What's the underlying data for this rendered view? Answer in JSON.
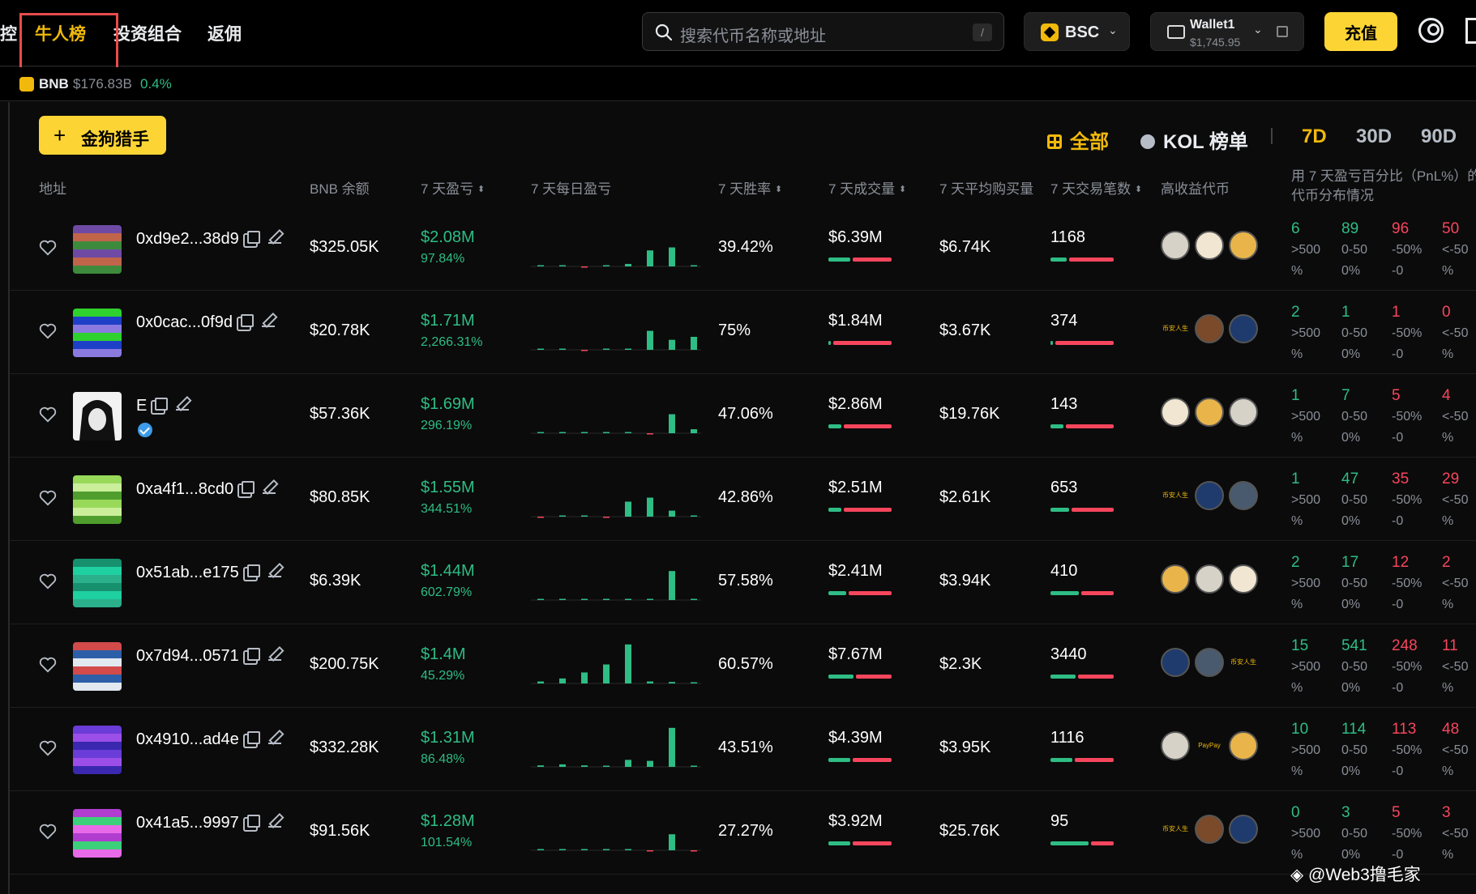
{
  "nav": {
    "items": [
      {
        "label": "控",
        "active": false
      },
      {
        "label": "牛人榜",
        "active": true
      },
      {
        "label": "投资组合",
        "active": false
      },
      {
        "label": "返佣",
        "active": false
      }
    ]
  },
  "search": {
    "placeholder": "搜索代币名称或地址",
    "shortcut": "/"
  },
  "chain": {
    "label": "BSC",
    "icon": "bnb-icon"
  },
  "wallet": {
    "name": "Wallet1",
    "balance": "$1,745.95"
  },
  "deposit_label": "充值",
  "ticker": {
    "symbol": "BNB",
    "cap": "$176.83B",
    "change": "0.4%"
  },
  "toolbar": {
    "add_label": "金狗猎手",
    "filters": [
      {
        "label": "全部",
        "active": true
      },
      {
        "label": "KOL 榜单",
        "active": false
      }
    ],
    "periods": [
      {
        "label": "7D",
        "active": true
      },
      {
        "label": "30D",
        "active": false
      },
      {
        "label": "90D",
        "active": false
      }
    ]
  },
  "columns": {
    "address": "地址",
    "balance": "BNB 余额",
    "pnl": "7 天盈亏",
    "daily": "7 天每日盈亏",
    "winrate": "7 天胜率",
    "volume": "7 天成交量",
    "avg_buy": "7 天平均购买量",
    "tx_count": "7 天交易笔数",
    "top_tokens": "高收益代币",
    "distribution": "用 7 天盈亏百分比（PnL%）的代币分布情况"
  },
  "distribution_labels": [
    ">500%",
    "0-500%",
    "-50%-0",
    "<-50%"
  ],
  "rows": [
    {
      "address": "0xd9e2...38d9",
      "balance": "$325.05K",
      "pnl": "$2.08M",
      "pnl_pct": "97.84%",
      "daily": [
        0.5,
        0.5,
        -0.3,
        0.5,
        2.5,
        16,
        19,
        0.3
      ],
      "winrate": "39.42%",
      "volume": "$6.39M",
      "vol_buy_share": 0.35,
      "avg_buy": "$6.74K",
      "tx_count": "1168",
      "tx_buy_share": 0.25,
      "tokens": [
        "token-icon",
        "token-icon",
        "token-icon"
      ],
      "dist": [
        "6",
        "89",
        "96",
        "50"
      ]
    },
    {
      "address": "0x0cac...0f9d",
      "balance": "$20.78K",
      "pnl": "$1.71M",
      "pnl_pct": "2,266.31%",
      "daily": [
        0,
        0.5,
        -0.4,
        0,
        0,
        19,
        10,
        13
      ],
      "winrate": "75%",
      "volume": "$1.84M",
      "vol_buy_share": 0.04,
      "avg_buy": "$3.67K",
      "tx_count": "374",
      "tx_buy_share": 0.04,
      "tokens": [
        "币安人生",
        "token-icon",
        "token-icon"
      ],
      "dist": [
        "2",
        "1",
        "1",
        "0"
      ]
    },
    {
      "address": "E",
      "verified": true,
      "balance": "$57.36K",
      "pnl": "$1.69M",
      "pnl_pct": "296.19%",
      "daily": [
        0,
        0.3,
        0.3,
        0.3,
        0.5,
        -0.4,
        19,
        4
      ],
      "winrate": "47.06%",
      "volume": "$2.86M",
      "vol_buy_share": 0.2,
      "avg_buy": "$19.76K",
      "tx_count": "143",
      "tx_buy_share": 0.2,
      "tokens": [
        "token-icon",
        "token-icon",
        "token-icon"
      ],
      "dist": [
        "1",
        "7",
        "5",
        "4"
      ]
    },
    {
      "address": "0xa4f1...8cd0",
      "balance": "$80.85K",
      "pnl": "$1.55M",
      "pnl_pct": "344.51%",
      "daily": [
        -0.3,
        0.3,
        0,
        -0.3,
        15,
        19,
        6,
        1
      ],
      "winrate": "42.86%",
      "volume": "$2.51M",
      "vol_buy_share": 0.2,
      "avg_buy": "$2.61K",
      "tx_count": "653",
      "tx_buy_share": 0.3,
      "tokens": [
        "币安人生",
        "token-icon",
        "token-icon"
      ],
      "dist": [
        "1",
        "47",
        "35",
        "29"
      ]
    },
    {
      "address": "0x51ab...e175",
      "balance": "$6.39K",
      "pnl": "$1.44M",
      "pnl_pct": "602.79%",
      "daily": [
        0,
        0,
        0,
        0,
        0,
        0.3,
        29,
        0.3
      ],
      "winrate": "57.58%",
      "volume": "$2.41M",
      "vol_buy_share": 0.28,
      "avg_buy": "$3.94K",
      "tx_count": "410",
      "tx_buy_share": 0.45,
      "tokens": [
        "token-icon",
        "token-icon",
        "token-icon"
      ],
      "dist": [
        "2",
        "17",
        "12",
        "2"
      ]
    },
    {
      "address": "0x7d94...0571",
      "balance": "$200.75K",
      "pnl": "$1.4M",
      "pnl_pct": "45.29%",
      "daily": [
        2,
        5,
        11,
        19,
        39,
        2,
        1.5,
        1
      ],
      "winrate": "60.57%",
      "volume": "$7.67M",
      "vol_buy_share": 0.4,
      "avg_buy": "$2.3K",
      "tx_count": "3440",
      "tx_buy_share": 0.4,
      "tokens": [
        "token-icon",
        "token-icon",
        "币安人生"
      ],
      "dist": [
        "15",
        "541",
        "248",
        "11"
      ]
    },
    {
      "address": "0x4910...ad4e",
      "balance": "$332.28K",
      "pnl": "$1.31M",
      "pnl_pct": "86.48%",
      "daily": [
        1.5,
        2.5,
        1.5,
        1,
        7,
        6,
        39,
        1
      ],
      "winrate": "43.51%",
      "volume": "$4.39M",
      "vol_buy_share": 0.35,
      "avg_buy": "$3.95K",
      "tx_count": "1116",
      "tx_buy_share": 0.35,
      "tokens": [
        "token-icon",
        "PayPay",
        "token-icon"
      ],
      "dist": [
        "10",
        "114",
        "113",
        "48"
      ]
    },
    {
      "address": "0x41a5...9997",
      "balance": "$91.56K",
      "pnl": "$1.28M",
      "pnl_pct": "101.54%",
      "daily": [
        0,
        0,
        0,
        0.5,
        0,
        -0.3,
        16,
        -0.4
      ],
      "winrate": "27.27%",
      "volume": "$3.92M",
      "vol_buy_share": 0.35,
      "avg_buy": "$25.76K",
      "tx_count": "95",
      "tx_buy_share": 0.6,
      "tokens": [
        "币安人生",
        "token-icon",
        "token-icon"
      ],
      "dist": [
        "0",
        "3",
        "5",
        "3"
      ]
    }
  ],
  "watermark": "@Web3撸毛家",
  "colors": {
    "accent": "#f0b90b",
    "up": "#2ebd85",
    "down": "#f6465d",
    "bg": "#0b0b0b"
  }
}
